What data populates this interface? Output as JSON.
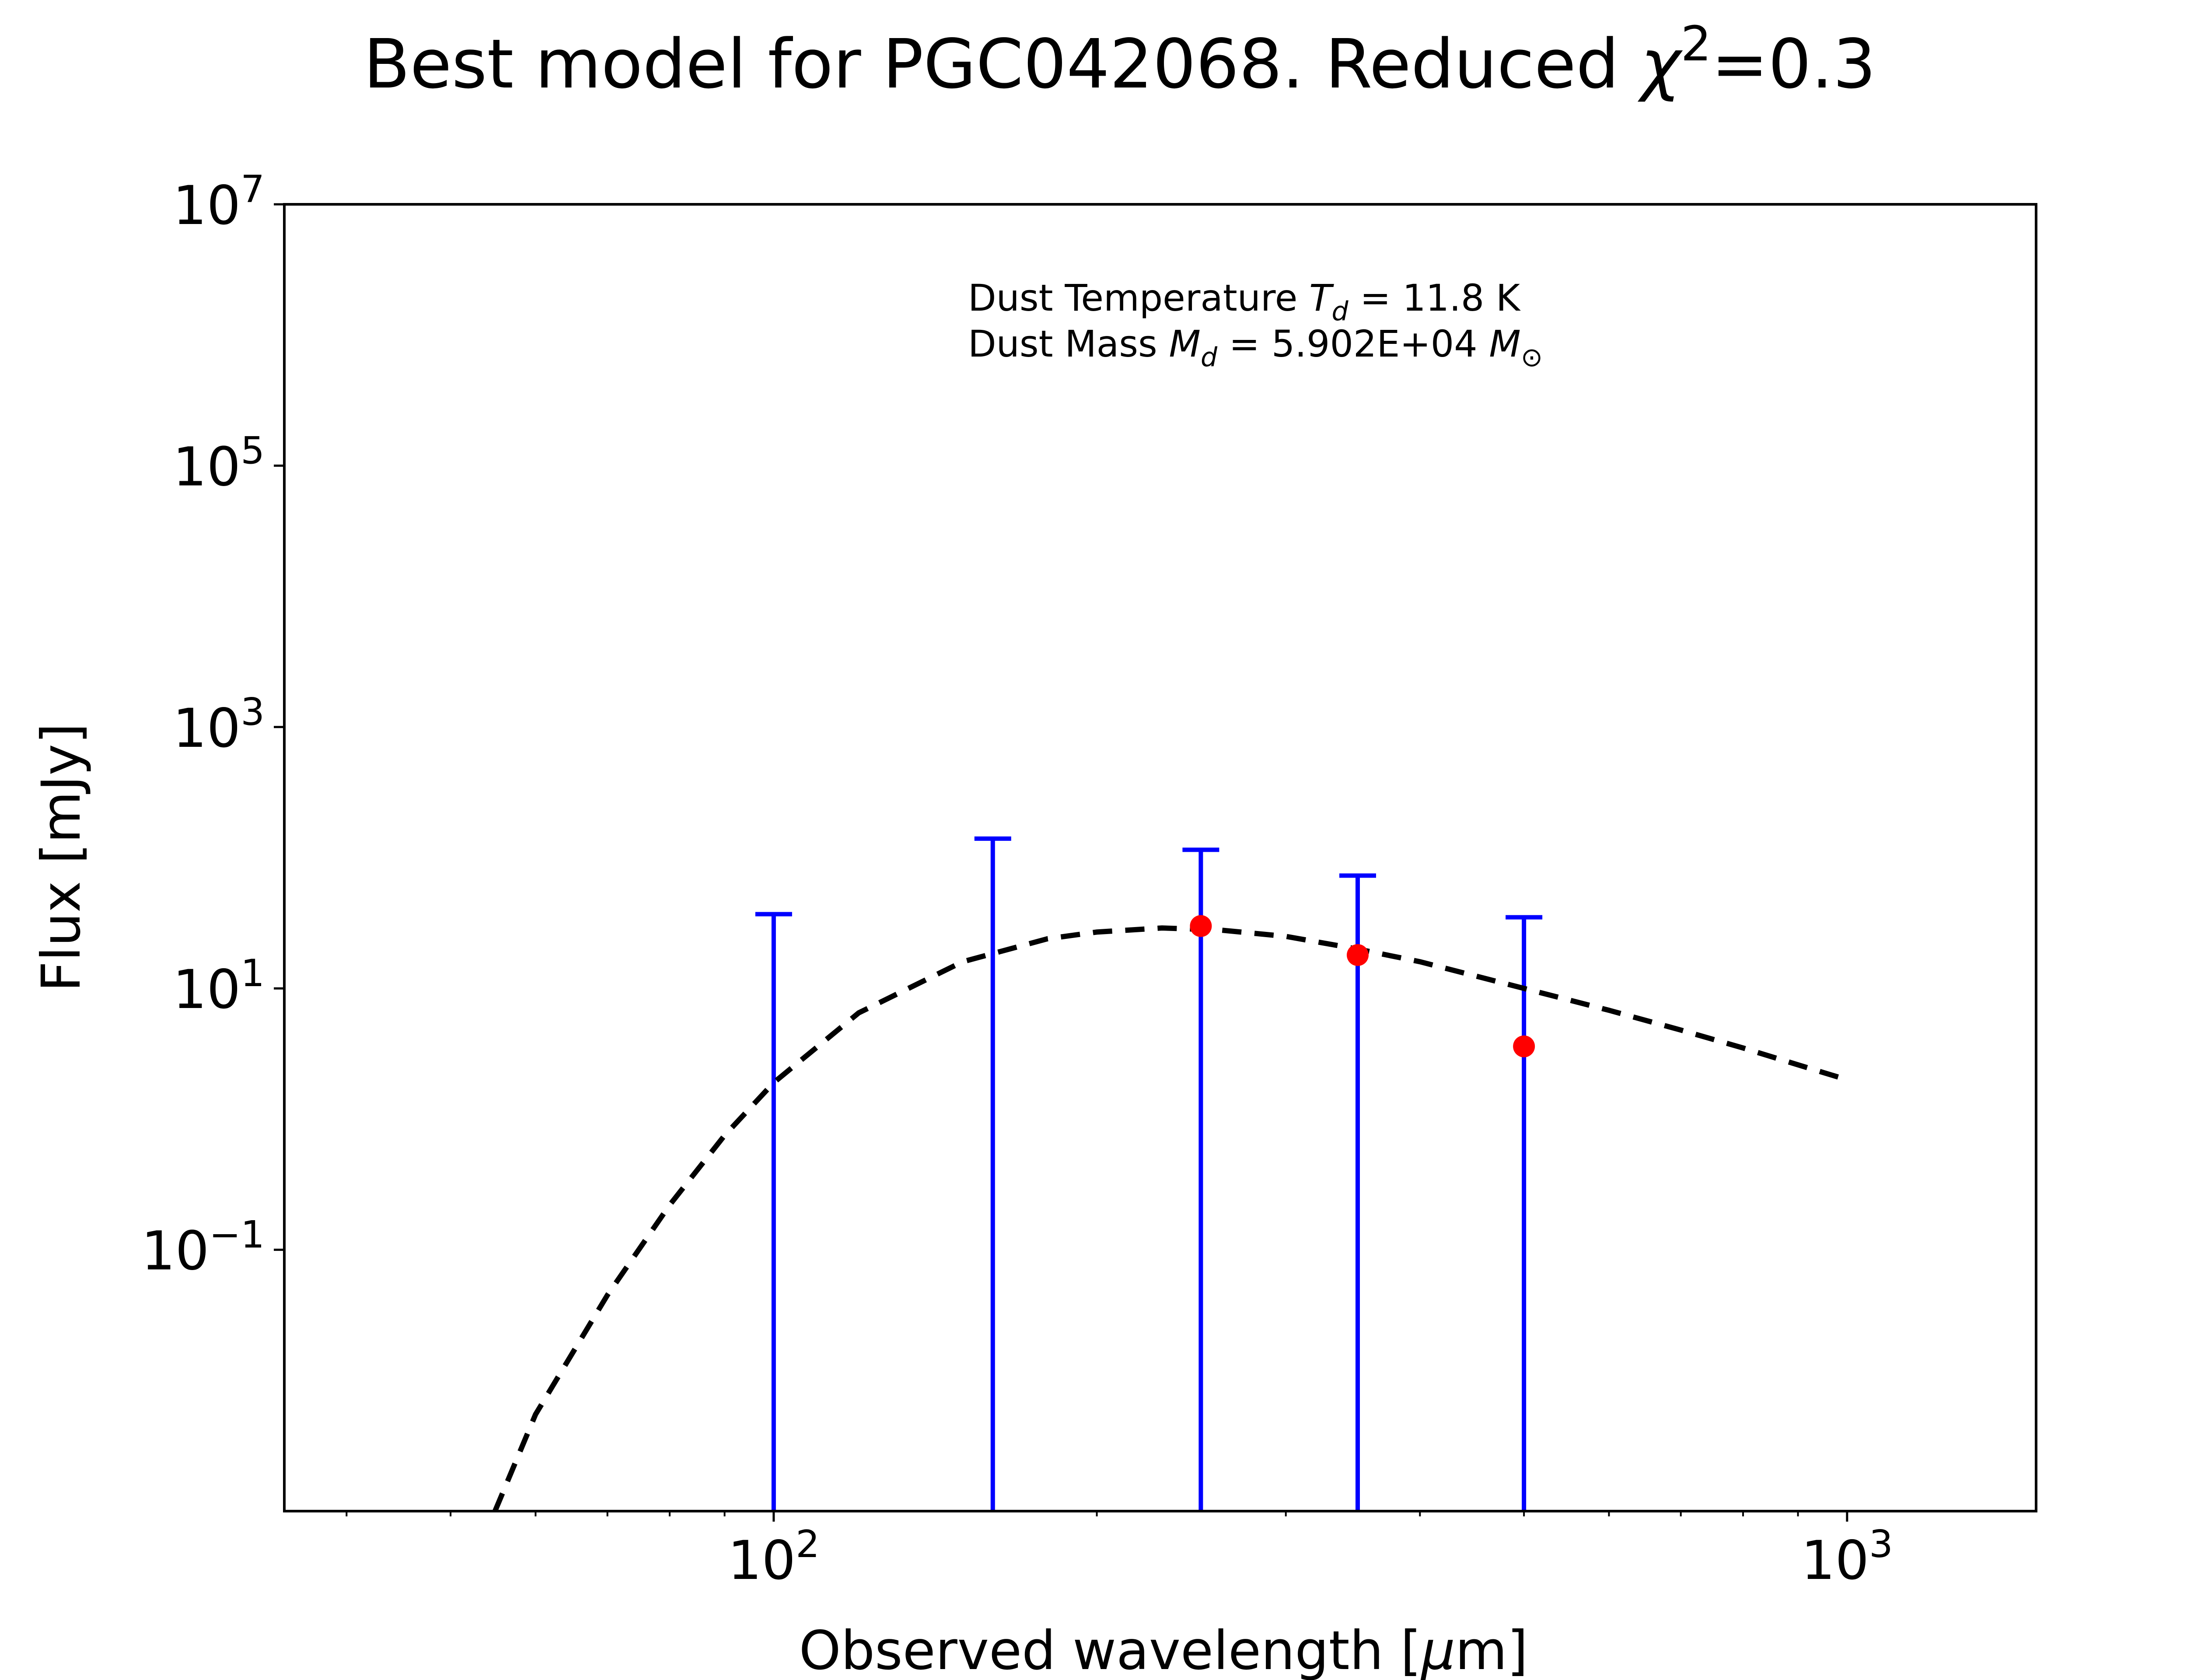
{
  "chart_data": {
    "type": "scatter",
    "title": {
      "prefix": "Best model for PGC042068. Reduced ",
      "symbol": "χ",
      "superscript": "2",
      "suffix": "=0.3"
    },
    "xlabel": {
      "prefix": "Observed wavelength [",
      "italic": "μ",
      "suffix": "m]"
    },
    "ylabel": "Flux [mJy]",
    "x_scale": "log",
    "y_scale": "log",
    "xlim": [
      35,
      1500
    ],
    "ylim": [
      0.001,
      10000000
    ],
    "x_ticks": [
      {
        "value": 100,
        "base": "10",
        "exp": "2"
      },
      {
        "value": 1000,
        "base": "10",
        "exp": "3"
      }
    ],
    "y_ticks": [
      {
        "value": 10000000,
        "base": "10",
        "exp": "7"
      },
      {
        "value": 100000,
        "base": "10",
        "exp": "5"
      },
      {
        "value": 1000,
        "base": "10",
        "exp": "3"
      },
      {
        "value": 10,
        "base": "10",
        "exp": "1"
      },
      {
        "value": 0.1,
        "base": "10",
        "exp": "−1"
      }
    ],
    "annotation": {
      "line1": {
        "prefix": "Dust Temperature ",
        "sym": "T",
        "sub": "d",
        "suffix": " = 11.8 K"
      },
      "line2": {
        "prefix": "Dust Mass ",
        "sym": "M",
        "sub": "d",
        "mid": " = 5.902E+04 ",
        "sym2": "M",
        "sub2": "⊙"
      }
    },
    "series": [
      {
        "kind": "upper_limits",
        "color": "#0000ff",
        "points": [
          {
            "x": 100,
            "y": 37
          },
          {
            "x": 160,
            "y": 140
          },
          {
            "x": 250,
            "y": 115
          },
          {
            "x": 350,
            "y": 73
          },
          {
            "x": 500,
            "y": 35
          }
        ]
      },
      {
        "kind": "detections",
        "color": "#ff0000",
        "points": [
          {
            "x": 250,
            "y": 30
          },
          {
            "x": 350,
            "y": 18
          },
          {
            "x": 500,
            "y": 3.6
          }
        ]
      },
      {
        "kind": "model",
        "color": "#000000",
        "line_style": "dashed",
        "curve": [
          {
            "x": 55,
            "y": 0.001
          },
          {
            "x": 60,
            "y": 0.0055
          },
          {
            "x": 70,
            "y": 0.045
          },
          {
            "x": 80,
            "y": 0.22
          },
          {
            "x": 90,
            "y": 0.75
          },
          {
            "x": 100,
            "y": 1.9
          },
          {
            "x": 120,
            "y": 6.5
          },
          {
            "x": 150,
            "y": 16
          },
          {
            "x": 180,
            "y": 24
          },
          {
            "x": 200,
            "y": 27
          },
          {
            "x": 230,
            "y": 29
          },
          {
            "x": 260,
            "y": 28
          },
          {
            "x": 300,
            "y": 25
          },
          {
            "x": 350,
            "y": 20
          },
          {
            "x": 400,
            "y": 16
          },
          {
            "x": 500,
            "y": 10
          },
          {
            "x": 600,
            "y": 6.8
          },
          {
            "x": 700,
            "y": 4.8
          },
          {
            "x": 800,
            "y": 3.5
          },
          {
            "x": 900,
            "y": 2.6
          },
          {
            "x": 1000,
            "y": 2.0
          }
        ]
      }
    ]
  }
}
